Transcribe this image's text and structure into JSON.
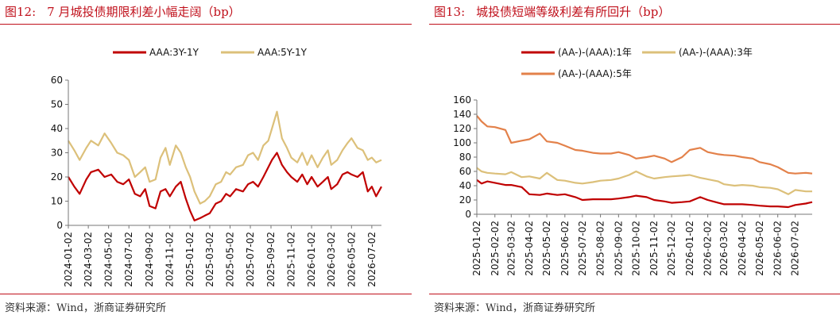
{
  "colors": {
    "accent": "#c0101b",
    "red": "#c00000",
    "tan": "#dcc07a",
    "orange": "#e3814a"
  },
  "left": {
    "figure_label": "图12:",
    "title": "7 月城投债期限利差小幅走阔（bp）",
    "source": "资料来源：Wind，浙商证券研究所"
  },
  "right": {
    "figure_label": "图13:",
    "title": "城投债短端等级利差有所回升（bp）",
    "source": "资料来源：Wind，浙商证券研究所"
  },
  "chart_data": [
    {
      "type": "line",
      "title": "7 月城投债期限利差小幅走阔（bp）",
      "xlabel": "",
      "ylabel": "",
      "ylim": [
        0,
        60
      ],
      "yticks": [
        0,
        10,
        20,
        30,
        40,
        50,
        60
      ],
      "xticks": [
        "2024-01-02",
        "2024-03-02",
        "2024-05-02",
        "2024-07-02",
        "2024-09-02",
        "2024-11-02",
        "2025-01-02",
        "2025-03-02",
        "2025-05-02",
        "2025-07-02",
        "2025-09-02",
        "2025-11-02",
        "2026-01-02",
        "2026-03-02",
        "2026-05-02",
        "2026-07-02"
      ],
      "grid": false,
      "legend_placement": "top",
      "series": [
        {
          "name": "AAA:3Y-1Y",
          "color": "#c00000",
          "x": [
            "2024-01-02",
            "2024-01-20",
            "2024-02-05",
            "2024-02-25",
            "2024-03-10",
            "2024-04-01",
            "2024-04-20",
            "2024-05-10",
            "2024-05-28",
            "2024-06-15",
            "2024-07-02",
            "2024-07-20",
            "2024-08-05",
            "2024-08-20",
            "2024-09-02",
            "2024-09-20",
            "2024-10-05",
            "2024-10-20",
            "2024-11-02",
            "2024-11-20",
            "2024-12-05",
            "2024-12-20",
            "2025-01-02",
            "2025-01-15",
            "2025-02-01",
            "2025-02-15",
            "2025-03-02",
            "2025-03-20",
            "2025-04-05",
            "2025-04-20",
            "2025-05-02",
            "2025-05-20",
            "2025-06-10",
            "2025-06-25",
            "2025-07-10",
            "2025-07-25",
            "2025-08-10",
            "2025-08-25",
            "2025-09-05",
            "2025-09-20",
            "2025-10-05",
            "2025-10-20",
            "2025-11-02",
            "2025-11-20",
            "2025-12-05",
            "2025-12-20",
            "2026-01-02",
            "2026-01-20",
            "2026-02-05",
            "2026-02-20",
            "2026-03-02",
            "2026-03-20",
            "2026-04-05",
            "2026-04-20",
            "2026-05-02",
            "2026-05-20",
            "2026-06-05",
            "2026-06-20",
            "2026-07-02",
            "2026-07-15",
            "2026-07-31"
          ],
          "values": [
            20,
            16,
            13,
            19,
            22,
            23,
            20,
            21,
            18,
            17,
            19,
            13,
            12,
            15,
            8,
            7,
            14,
            15,
            12,
            16,
            18,
            11,
            6,
            2,
            3,
            4,
            5,
            9,
            10,
            13,
            12,
            15,
            14,
            17,
            18,
            16,
            20,
            24,
            27,
            30,
            25,
            22,
            20,
            18,
            21,
            17,
            20,
            16,
            18,
            20,
            15,
            17,
            21,
            22,
            21,
            20,
            22,
            14,
            16,
            12,
            16
          ]
        },
        {
          "name": "AAA:5Y-1Y",
          "color": "#dcc07a",
          "x": [
            "2024-01-02",
            "2024-01-20",
            "2024-02-05",
            "2024-02-25",
            "2024-03-10",
            "2024-04-01",
            "2024-04-20",
            "2024-05-10",
            "2024-05-28",
            "2024-06-15",
            "2024-07-02",
            "2024-07-20",
            "2024-08-05",
            "2024-08-20",
            "2024-09-02",
            "2024-09-20",
            "2024-10-05",
            "2024-10-20",
            "2024-11-02",
            "2024-11-20",
            "2024-12-05",
            "2024-12-20",
            "2025-01-02",
            "2025-01-15",
            "2025-02-01",
            "2025-02-15",
            "2025-03-02",
            "2025-03-20",
            "2025-04-05",
            "2025-04-20",
            "2025-05-02",
            "2025-05-20",
            "2025-06-10",
            "2025-06-25",
            "2025-07-10",
            "2025-07-25",
            "2025-08-10",
            "2025-08-25",
            "2025-09-05",
            "2025-09-20",
            "2025-10-05",
            "2025-10-20",
            "2025-11-02",
            "2025-11-20",
            "2025-12-05",
            "2025-12-20",
            "2026-01-02",
            "2026-01-20",
            "2026-02-05",
            "2026-02-20",
            "2026-03-02",
            "2026-03-20",
            "2026-04-05",
            "2026-04-20",
            "2026-05-02",
            "2026-05-20",
            "2026-06-05",
            "2026-06-20",
            "2026-07-02",
            "2026-07-15",
            "2026-07-31"
          ],
          "values": [
            35,
            31,
            27,
            32,
            35,
            33,
            38,
            34,
            30,
            29,
            27,
            20,
            22,
            24,
            18,
            19,
            28,
            32,
            25,
            33,
            30,
            24,
            20,
            14,
            9,
            10,
            12,
            17,
            18,
            22,
            21,
            24,
            25,
            29,
            30,
            27,
            33,
            35,
            40,
            47,
            36,
            32,
            28,
            26,
            30,
            25,
            29,
            24,
            28,
            31,
            25,
            27,
            31,
            34,
            36,
            32,
            31,
            27,
            28,
            26,
            27
          ]
        }
      ]
    },
    {
      "type": "line",
      "title": "城投债短端等级利差有所回升（bp）",
      "xlabel": "",
      "ylabel": "",
      "ylim": [
        0,
        160
      ],
      "yticks": [
        0,
        20,
        40,
        60,
        80,
        100,
        120,
        140,
        160
      ],
      "xticks": [
        "2025-01-02",
        "2025-02-02",
        "2025-03-02",
        "2025-04-02",
        "2025-05-02",
        "2025-06-02",
        "2025-07-02",
        "2025-08-02",
        "2025-09-02",
        "2025-10-02",
        "2025-11-02",
        "2025-12-02",
        "2026-01-02",
        "2026-02-02",
        "2026-03-02",
        "2026-04-02",
        "2026-05-02",
        "2026-06-02",
        "2026-07-02"
      ],
      "grid": false,
      "legend_placement": "top",
      "series": [
        {
          "name": "(AA-)-(AAA):1年",
          "color": "#c00000",
          "x": [
            "2025-01-02",
            "2025-01-10",
            "2025-01-20",
            "2025-02-02",
            "2025-02-20",
            "2025-03-02",
            "2025-03-20",
            "2025-04-02",
            "2025-04-20",
            "2025-05-02",
            "2025-05-20",
            "2025-06-02",
            "2025-06-20",
            "2025-07-02",
            "2025-07-20",
            "2025-08-02",
            "2025-08-20",
            "2025-09-02",
            "2025-09-20",
            "2025-10-02",
            "2025-10-20",
            "2025-11-02",
            "2025-11-20",
            "2025-12-02",
            "2025-12-20",
            "2026-01-02",
            "2026-01-20",
            "2026-02-02",
            "2026-02-20",
            "2026-03-02",
            "2026-03-20",
            "2026-04-02",
            "2026-04-20",
            "2026-05-02",
            "2026-05-20",
            "2026-06-02",
            "2026-06-20",
            "2026-07-02",
            "2026-07-20",
            "2026-07-31"
          ],
          "values": [
            48,
            43,
            46,
            44,
            41,
            41,
            38,
            28,
            27,
            29,
            27,
            28,
            24,
            20,
            21,
            21,
            21,
            22,
            24,
            26,
            24,
            20,
            18,
            16,
            17,
            18,
            24,
            20,
            16,
            14,
            14,
            14,
            13,
            12,
            11,
            11,
            10,
            13,
            15,
            17
          ]
        },
        {
          "name": "(AA-)-(AAA):3年",
          "color": "#dcc07a",
          "x": [
            "2025-01-02",
            "2025-01-10",
            "2025-01-20",
            "2025-02-02",
            "2025-02-20",
            "2025-03-02",
            "2025-03-20",
            "2025-04-02",
            "2025-04-20",
            "2025-05-02",
            "2025-05-20",
            "2025-06-02",
            "2025-06-20",
            "2025-07-02",
            "2025-07-20",
            "2025-08-02",
            "2025-08-20",
            "2025-09-02",
            "2025-09-20",
            "2025-10-02",
            "2025-10-20",
            "2025-11-02",
            "2025-11-20",
            "2025-12-02",
            "2025-12-20",
            "2026-01-02",
            "2026-01-20",
            "2026-02-02",
            "2026-02-20",
            "2026-03-02",
            "2026-03-20",
            "2026-04-02",
            "2026-04-20",
            "2026-05-02",
            "2026-05-20",
            "2026-06-02",
            "2026-06-20",
            "2026-07-02",
            "2026-07-20",
            "2026-07-31"
          ],
          "values": [
            65,
            60,
            58,
            57,
            56,
            59,
            52,
            53,
            50,
            58,
            48,
            47,
            44,
            43,
            45,
            47,
            48,
            50,
            55,
            60,
            53,
            50,
            52,
            53,
            54,
            55,
            51,
            49,
            46,
            42,
            40,
            41,
            40,
            38,
            37,
            35,
            28,
            34,
            32,
            32
          ]
        },
        {
          "name": "(AA-)-(AAA):5年",
          "color": "#e3814a",
          "x": [
            "2025-01-02",
            "2025-01-10",
            "2025-01-20",
            "2025-02-02",
            "2025-02-20",
            "2025-03-02",
            "2025-03-20",
            "2025-04-02",
            "2025-04-20",
            "2025-05-02",
            "2025-05-20",
            "2025-06-02",
            "2025-06-20",
            "2025-07-02",
            "2025-07-20",
            "2025-08-02",
            "2025-08-20",
            "2025-09-02",
            "2025-09-20",
            "2025-10-02",
            "2025-10-20",
            "2025-11-02",
            "2025-11-20",
            "2025-12-02",
            "2025-12-20",
            "2026-01-02",
            "2026-01-20",
            "2026-02-02",
            "2026-02-20",
            "2026-03-02",
            "2026-03-20",
            "2026-04-02",
            "2026-04-20",
            "2026-05-02",
            "2026-05-20",
            "2026-06-02",
            "2026-06-20",
            "2026-07-02",
            "2026-07-20",
            "2026-07-31"
          ],
          "values": [
            138,
            130,
            123,
            122,
            118,
            100,
            103,
            105,
            113,
            102,
            100,
            96,
            90,
            89,
            86,
            85,
            85,
            87,
            83,
            78,
            80,
            82,
            78,
            73,
            80,
            90,
            93,
            87,
            84,
            83,
            82,
            80,
            78,
            73,
            70,
            66,
            58,
            57,
            58,
            57
          ]
        }
      ]
    }
  ]
}
